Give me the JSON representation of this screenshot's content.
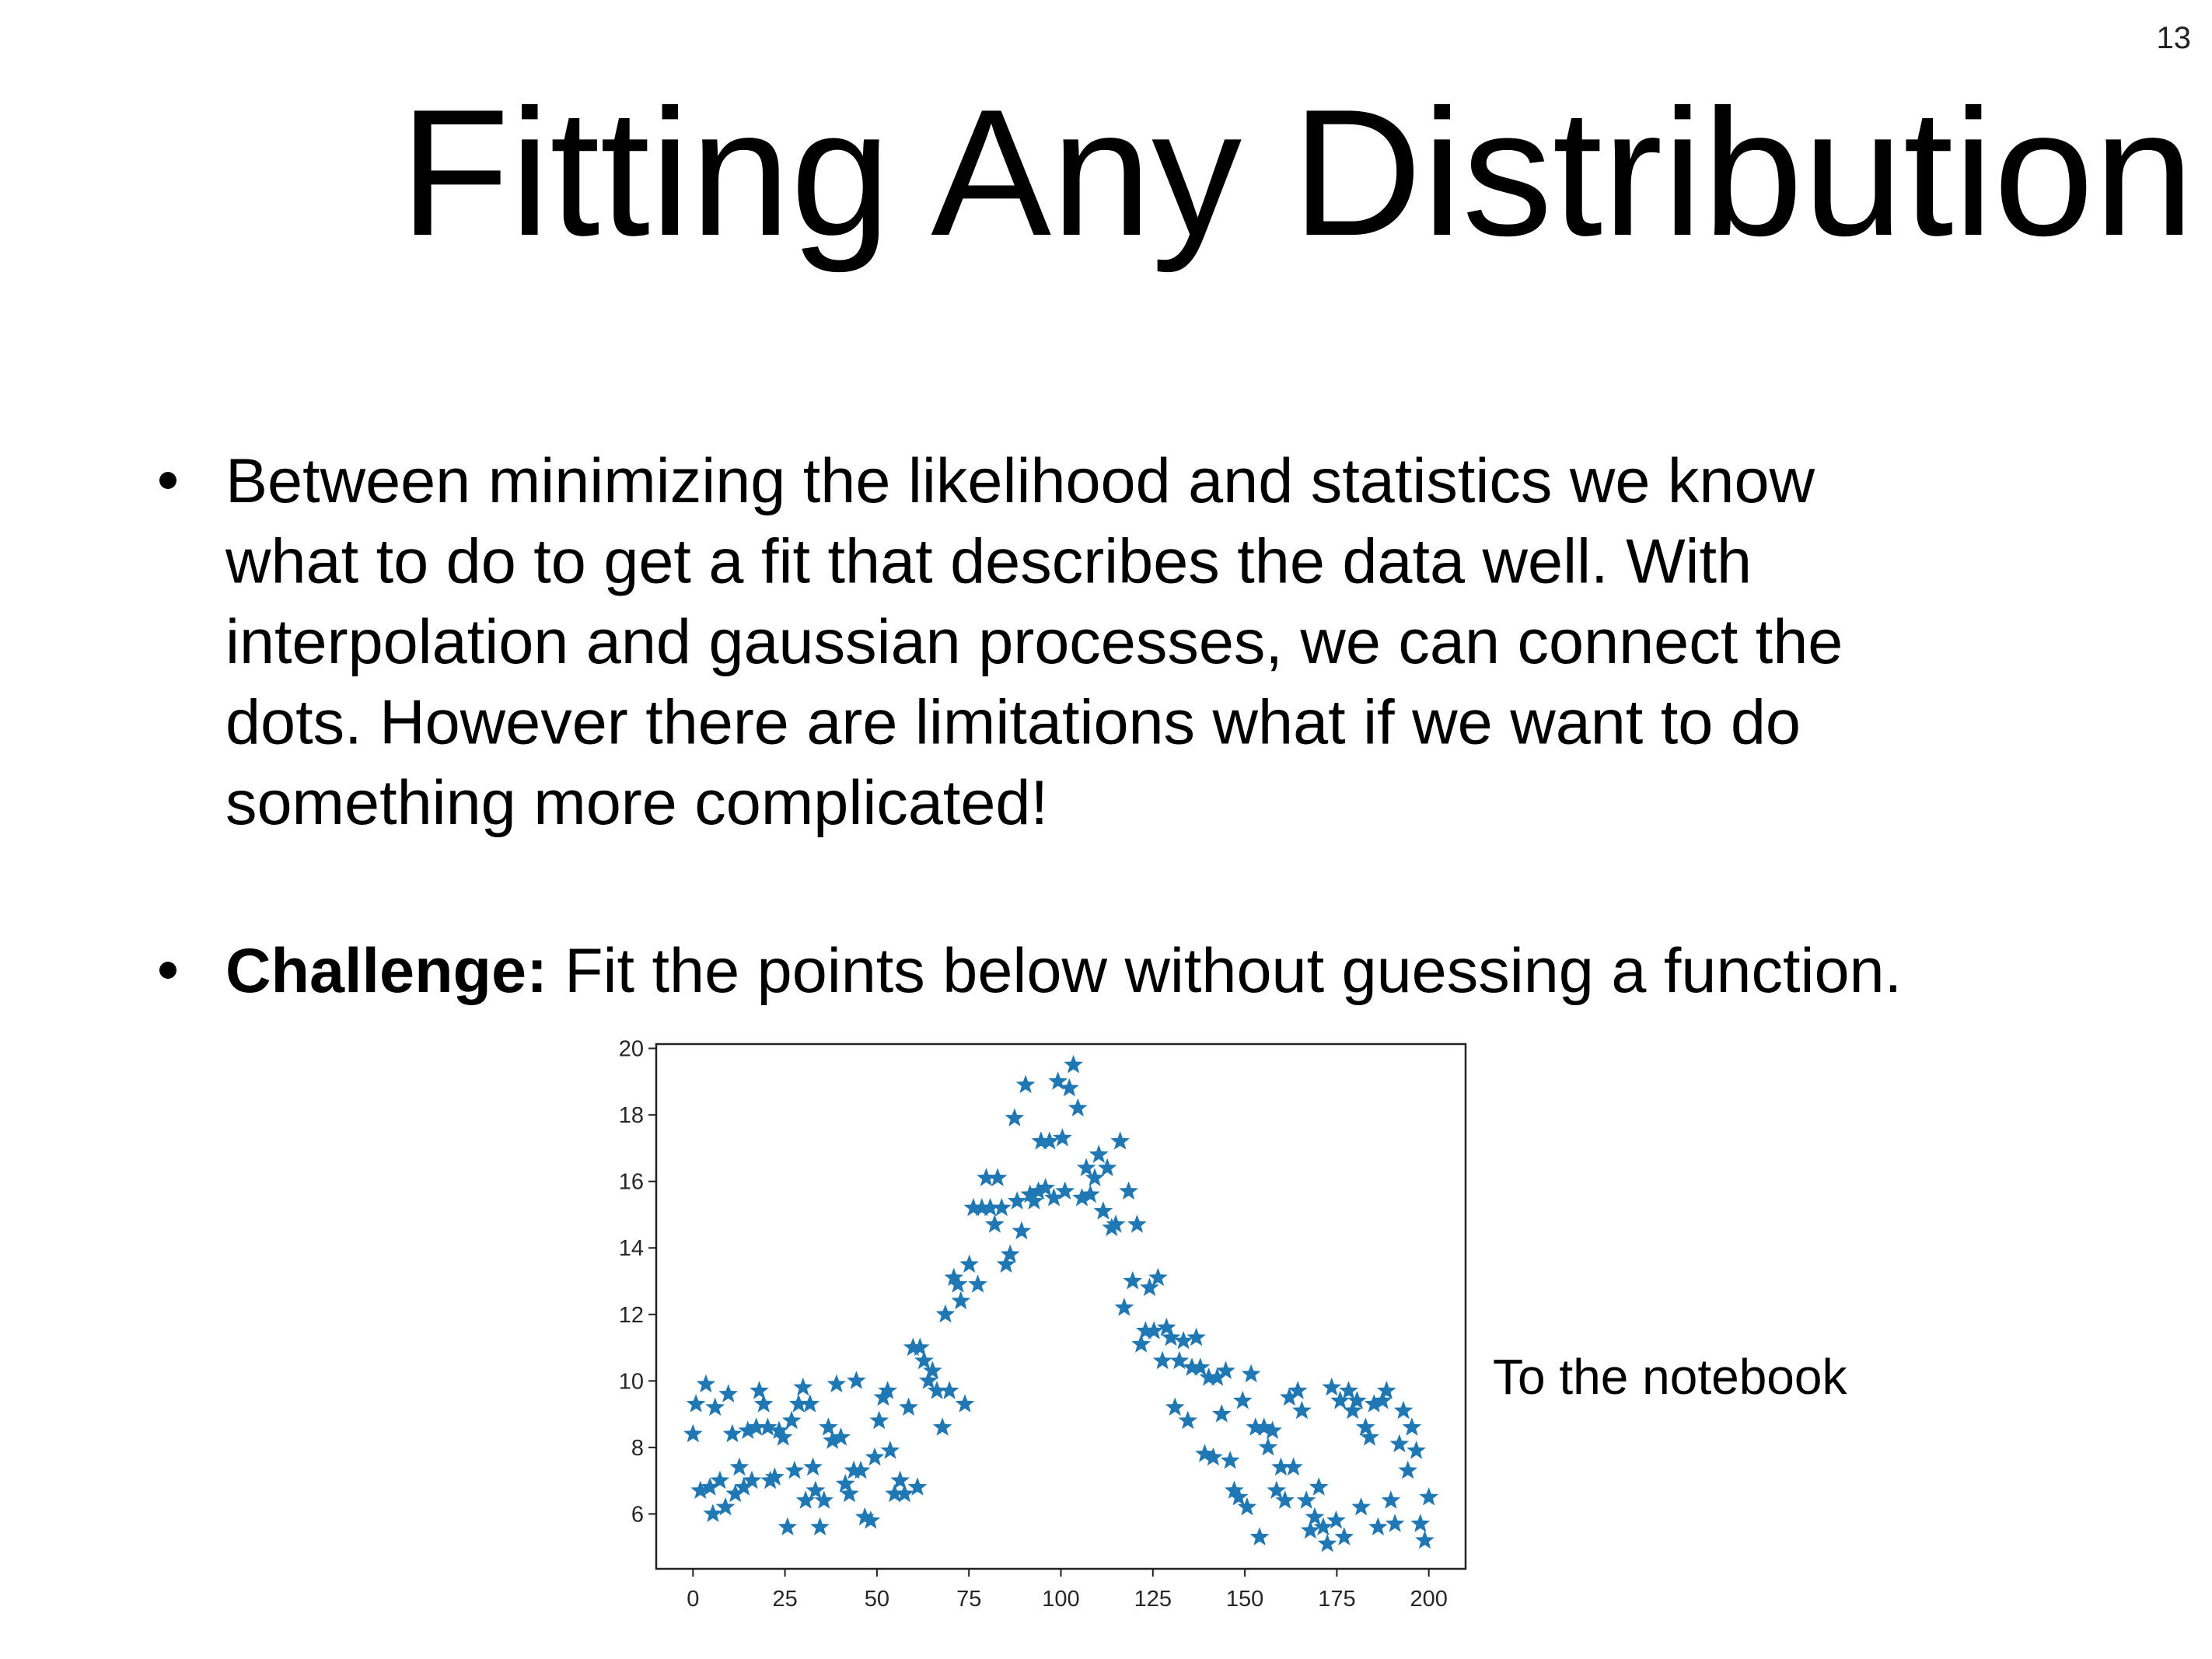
{
  "slide_number": "13",
  "title": "Fitting Any Distribution",
  "bullets": [
    {
      "lines": [
        "Between minimizing the likelihood and statistics we know",
        "what to do to get a fit that describes the data well. With",
        "interpolation and gaussian processes, we can connect the",
        "dots. However there are limitations what if we want to do",
        "something more complicated!"
      ]
    },
    {
      "label": "Challenge:",
      "text": "Fit the points below without guessing a function."
    }
  ],
  "note": "To the notebook",
  "chart_data": {
    "type": "scatter",
    "color": "#1f77b4",
    "x": [
      0,
      0.8,
      2,
      3.5,
      4.6,
      5.4,
      6,
      7.3,
      8.8,
      9.6,
      10.7,
      11.5,
      12.6,
      13.8,
      14.9,
      16,
      17.2,
      18,
      19.2,
      20.3,
      21,
      22.2,
      23.4,
      24.5,
      25.7,
      26.8,
      27.6,
      28.7,
      29.9,
      30.6,
      31.8,
      32.6,
      33.3,
      34.5,
      35.6,
      36.8,
      37.9,
      39,
      40.2,
      41.4,
      42.5,
      43.7,
      44.4,
      45.6,
      46.7,
      48.3,
      49.4,
      50.6,
      51.7,
      52.9,
      53.6,
      54.8,
      56.3,
      57.5,
      58.6,
      59.8,
      61,
      61.7,
      62.8,
      64,
      65.1,
      66.3,
      67.8,
      68.6,
      69.7,
      70.9,
      72,
      72.8,
      73.9,
      75.1,
      76.2,
      77.4,
      78.5,
      79.7,
      80.8,
      82,
      82.8,
      83.9,
      85.1,
      86.2,
      87.4,
      88.1,
      89.3,
      90.4,
      91.6,
      92.7,
      93.9,
      94.6,
      95.8,
      96.9,
      98.1,
      99.2,
      100.4,
      101.1,
      102.3,
      103.4,
      104.6,
      105.7,
      106.9,
      108,
      109.2,
      110.3,
      111.5,
      112.6,
      113.8,
      114.9,
      116.1,
      117.2,
      118.4,
      119.5,
      120.7,
      121.8,
      123,
      124.1,
      125.3,
      126.4,
      127.6,
      128.7,
      129.9,
      131,
      132.2,
      133.3,
      134.5,
      135.6,
      136.8,
      137.9,
      139.1,
      140.2,
      141.4,
      142.5,
      143.7,
      144.8,
      146,
      147.1,
      148.3,
      149.4,
      150.6,
      151.7,
      152.9,
      154,
      155.2,
      156.3,
      157.5,
      158.6,
      159.8,
      160.9,
      162.1,
      163.2,
      164.4,
      165.5,
      166.7,
      167.8,
      169,
      170.1,
      171.3,
      172.4,
      173.6,
      174.8,
      175.9,
      177,
      178.2,
      179.3,
      180.5,
      181.6,
      182.8,
      183.9,
      185.1,
      186.2,
      187.4,
      188.5,
      189.7,
      190.8,
      192,
      193.1,
      194.3,
      195.4,
      196.6,
      197.7,
      198.9,
      200
    ],
    "values": [
      8.4,
      9.3,
      6.7,
      9.9,
      6.8,
      6.0,
      9.2,
      7.0,
      6.2,
      9.6,
      8.4,
      6.6,
      7.4,
      6.8,
      8.5,
      7.0,
      8.6,
      9.7,
      9.3,
      8.6,
      7.0,
      7.1,
      8.5,
      8.3,
      5.6,
      8.8,
      7.3,
      9.3,
      9.8,
      6.4,
      9.3,
      7.4,
      6.7,
      5.6,
      6.4,
      8.6,
      8.2,
      9.9,
      8.3,
      6.9,
      6.6,
      7.3,
      10.0,
      7.3,
      5.9,
      5.8,
      7.7,
      8.8,
      9.5,
      9.7,
      7.9,
      6.6,
      7.0,
      6.6,
      9.2,
      11.0,
      6.8,
      11.0,
      10.6,
      10.0,
      10.3,
      9.7,
      8.6,
      12.0,
      9.7,
      13.1,
      12.9,
      12.4,
      9.3,
      13.5,
      15.2,
      12.9,
      15.2,
      16.1,
      15.2,
      14.7,
      16.1,
      15.2,
      13.5,
      13.8,
      17.9,
      15.4,
      14.5,
      18.9,
      15.6,
      15.4,
      15.7,
      17.2,
      15.8,
      17.2,
      15.5,
      19.0,
      17.3,
      15.7,
      18.8,
      19.5,
      18.2,
      15.5,
      16.4,
      15.6,
      16.1,
      16.8,
      15.1,
      16.4,
      14.6,
      14.7,
      17.2,
      12.2,
      15.7,
      13.0,
      14.7,
      11.1,
      11.5,
      12.8,
      11.5,
      13.1,
      10.6,
      11.6,
      11.3,
      9.2,
      10.6,
      11.2,
      8.8,
      10.4,
      11.3,
      10.4,
      7.8,
      10.1,
      7.7,
      10.1,
      9.0,
      10.3,
      7.6,
      6.7,
      6.5,
      9.4,
      6.2,
      10.2,
      8.6,
      5.3,
      8.6,
      8.0,
      8.5,
      6.7,
      7.4,
      6.4,
      9.5,
      7.4,
      9.7,
      9.1,
      6.4,
      5.5,
      5.9,
      6.8,
      5.6,
      5.1,
      9.8,
      5.8,
      9.4,
      5.3,
      9.7,
      9.1,
      9.4,
      6.2,
      8.6,
      8.3,
      9.3,
      5.6,
      9.4,
      9.7,
      6.4,
      5.7,
      8.1,
      9.1,
      7.3,
      8.6,
      7.9,
      5.7,
      5.2,
      6.5
    ],
    "xlim": [
      -10,
      210
    ],
    "ylim": [
      4.35,
      20.13
    ],
    "xticks": [
      0,
      25,
      50,
      75,
      100,
      125,
      150,
      175,
      200
    ],
    "yticks": [
      6,
      8,
      10,
      12,
      14,
      16,
      18,
      20
    ]
  }
}
